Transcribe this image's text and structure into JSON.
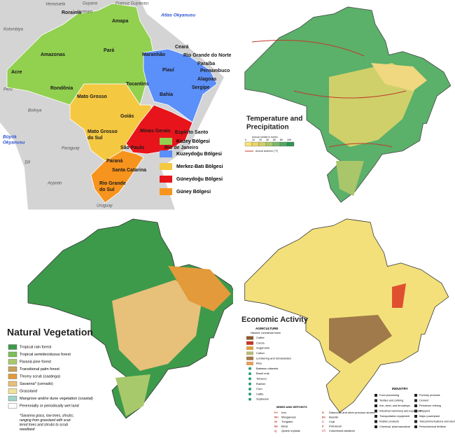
{
  "political_map": {
    "countries": [
      "Venezuela",
      "Guyana",
      "Surinam",
      "Fransız Guyanası",
      "Kolombiya",
      "Peru",
      "Bolivya",
      "Şili",
      "Paraguay",
      "Arjantin",
      "Uruguay"
    ],
    "oceans": [
      "Atlas Okyanusu",
      [
        "Büyük",
        "Okyanusu"
      ]
    ],
    "states": [
      "Roraima",
      "Amapa",
      "Amazonas",
      "Pará",
      "Acre",
      "Rondônia",
      "Mato Grosso",
      "Tocantins",
      "Maranhão",
      "Piauí",
      "Ceará",
      "Rio Grande do Norte",
      "Paraíba",
      "Pernambuco",
      "Alagoas",
      "Sergipe",
      "Bahia",
      "Goiás",
      [
        "Mato Grosso",
        "do Sul"
      ],
      "Minas Gerais",
      "Espírito Santo",
      "São Paulo",
      "Rio de Janeiro",
      "Paraná",
      "Santa Catarina",
      [
        "Rio Grande",
        "do Sul"
      ]
    ],
    "legend": [
      {
        "label": "Kuzey Bölgesi",
        "color": "#92d050"
      },
      {
        "label": "Kuzeydoğu Bölgesi",
        "color": "#5b8ff9"
      },
      {
        "label": "Merkez-Batı Bölgesi",
        "color": "#f5c842"
      },
      {
        "label": "Güneydoğu Bölgesi",
        "color": "#e8141b"
      },
      {
        "label": "Güney Bölgesi",
        "color": "#f7941d"
      }
    ]
  },
  "climate_map": {
    "title": [
      "Temperature and",
      "Precipitation"
    ],
    "rainfall_label": "Annual rainfall in inches",
    "scale": [
      {
        "label": "0",
        "color": "#f6e27a"
      },
      {
        "label": "10",
        "color": "#e9d56a"
      },
      {
        "label": "20",
        "color": "#cfd06a"
      },
      {
        "label": "40",
        "color": "#a9c66a"
      },
      {
        "label": "60",
        "color": "#7db86a"
      },
      {
        "label": "80",
        "color": "#52a862"
      },
      {
        "label": "100",
        "color": "#2f9457"
      }
    ],
    "isotherm_label": "Annual isotherm (°F)"
  },
  "vegetation_map": {
    "title": "Natural Vegetation",
    "legend": [
      {
        "label": "Tropical rain forest",
        "color": "#3d9a4b"
      },
      {
        "label": "Tropical semideciduous forest",
        "color": "#7cbf5a"
      },
      {
        "label": "Paraná pine forest",
        "color": "#a8c96b"
      },
      {
        "label": "Transitional palm forest",
        "color": "#c9a25a"
      },
      {
        "label": "Thorny scrub (caatinga)",
        "color": "#e39a3a"
      },
      {
        "label": "Savanna* (cerrado)",
        "color": "#e7c07a"
      },
      {
        "label": "Grassland",
        "color": "#eee39a"
      },
      {
        "label": "Mangrove and/or dune vegetation (coastal)",
        "color": "#9fd3c9"
      },
      {
        "label": "Perennially or periodically wet land",
        "color": "#ffffff"
      }
    ],
    "note": [
      "*Savanna grass, low trees, shrubs;",
      "ranging from grassland with scat-",
      "tered trees and shrubs to scrub",
      "woodland"
    ]
  },
  "economic_map": {
    "title": "Economic Activity",
    "agriculture": {
      "title": "AGRICULTURE",
      "subtitle": "Hatched: commercial forest",
      "items": [
        {
          "label": "Coffee",
          "color": "#8a5a2b"
        },
        {
          "label": "Cocoa",
          "color": "#c0392b"
        },
        {
          "label": "Sugarcane",
          "color": "#d9a04a"
        },
        {
          "label": "Cotton",
          "color": "#b9b97a"
        },
        {
          "label": "Lumbering and reforestation",
          "color": "#a07a4a"
        },
        {
          "label": "Rice",
          "color": "#e0a060"
        },
        {
          "label": "Babassu oilseeds",
          "color": "#2a9a7a"
        },
        {
          "label": "Brazil nuts",
          "color": "#2a9a7a"
        },
        {
          "label": "Tobacco",
          "color": "#2a9a7a"
        },
        {
          "label": "Rubber",
          "color": "#2a9a7a"
        },
        {
          "label": "Corn",
          "color": "#2a9a7a"
        },
        {
          "label": "Cattle",
          "color": "#2a9a7a"
        },
        {
          "label": "Soybeans",
          "color": "#2a9a7a"
        }
      ]
    },
    "mines": {
      "title": "MINES AND DEPOSITS",
      "items": [
        {
          "code": "Fe",
          "label": "Iron"
        },
        {
          "code": "Mn",
          "label": "Manganese"
        },
        {
          "code": "W",
          "label": "Tungsten"
        },
        {
          "code": "Be",
          "label": "Beryl"
        },
        {
          "code": "Q",
          "label": "Quartz crystals"
        },
        {
          "code": "D",
          "label": "Diamonds and other precious stones"
        },
        {
          "code": "Bx",
          "label": "Bauxite"
        },
        {
          "code": "C",
          "label": "Coal"
        },
        {
          "code": "P",
          "label": "Petroleum"
        },
        {
          "code": "CT",
          "label": "Columbium-tantalum"
        }
      ]
    },
    "industry": {
      "title": "INDUSTRY",
      "items": [
        "Food processing",
        "Textiles and clothing",
        "Iron, steel, and ferroalloys",
        "Industrial machinery and equipment",
        "Transportation equipment",
        "Rubber products",
        "Chemical, pharmaceutical",
        "Forestry products",
        "Cement",
        "Petroleum refining",
        "Shipyard",
        "Major powerplant",
        "Telecommunications and electronic equipment",
        "Petrochemical fertilizer"
      ]
    }
  }
}
